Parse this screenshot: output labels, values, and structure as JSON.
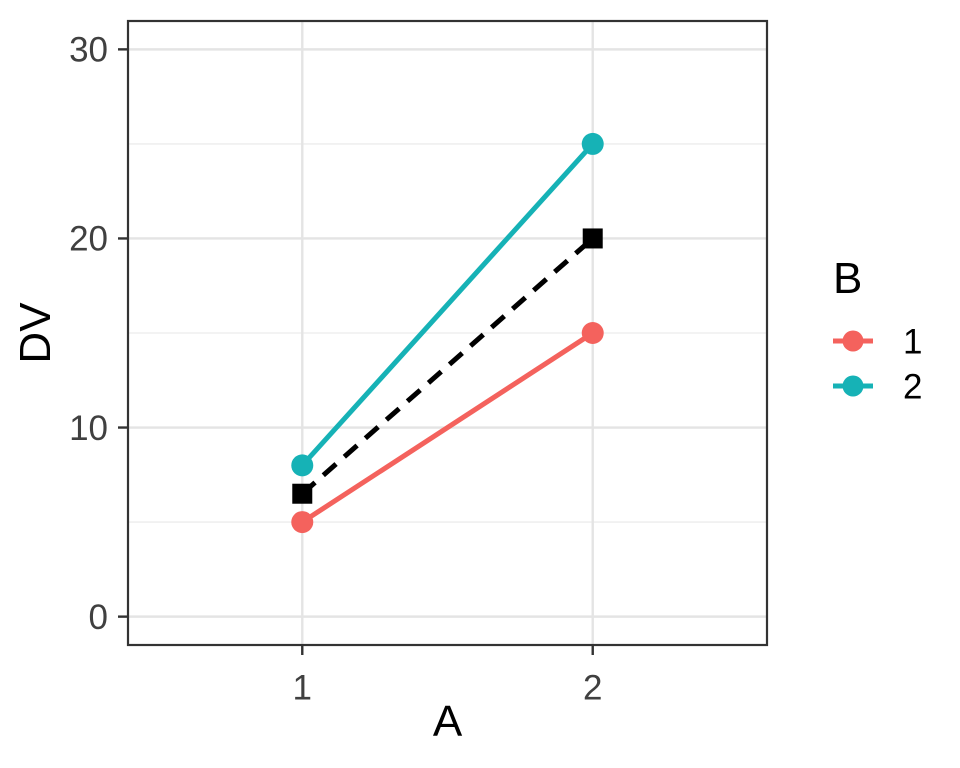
{
  "figure": {
    "background": "#FFFFFF"
  },
  "chart_data": {
    "type": "line",
    "title": "",
    "xlabel": "A",
    "ylabel": "DV",
    "x_tick_labels": [
      "1",
      "2"
    ],
    "x_positions": [
      1,
      2
    ],
    "y_tick_labels": [
      "0",
      "10",
      "20",
      "30"
    ],
    "y_major_ticks": [
      0,
      10,
      20,
      30
    ],
    "y_minor_gridlines": [
      5,
      15,
      25
    ],
    "xlim": [
      0.4,
      2.6
    ],
    "ylim": [
      -1.5,
      31.5
    ],
    "grid": {
      "major_color": "#E4E4E4",
      "minor_color": "#EFEFEF",
      "visible": true
    },
    "panel_border_color": "#333333",
    "tick_color": "#333333",
    "tick_label_color": "#404040",
    "axis_title_color": "#000000",
    "legend": {
      "title": "B",
      "position": "right",
      "entries": [
        {
          "label": "1",
          "color": "#F4625D"
        },
        {
          "label": "2",
          "color": "#16B2B6"
        }
      ]
    },
    "series": [
      {
        "name": "1",
        "color": "#F4625D",
        "marker": "circle",
        "linestyle": "solid",
        "x": [
          1,
          2
        ],
        "y": [
          5,
          15
        ],
        "in_legend": true
      },
      {
        "name": "2",
        "color": "#16B2B6",
        "marker": "circle",
        "linestyle": "solid",
        "x": [
          1,
          2
        ],
        "y": [
          8,
          25
        ],
        "in_legend": true
      },
      {
        "name": "grand-mean",
        "color": "#000000",
        "marker": "square",
        "linestyle": "dashed",
        "x": [
          1,
          2
        ],
        "y": [
          6.5,
          20
        ],
        "in_legend": false
      }
    ]
  }
}
